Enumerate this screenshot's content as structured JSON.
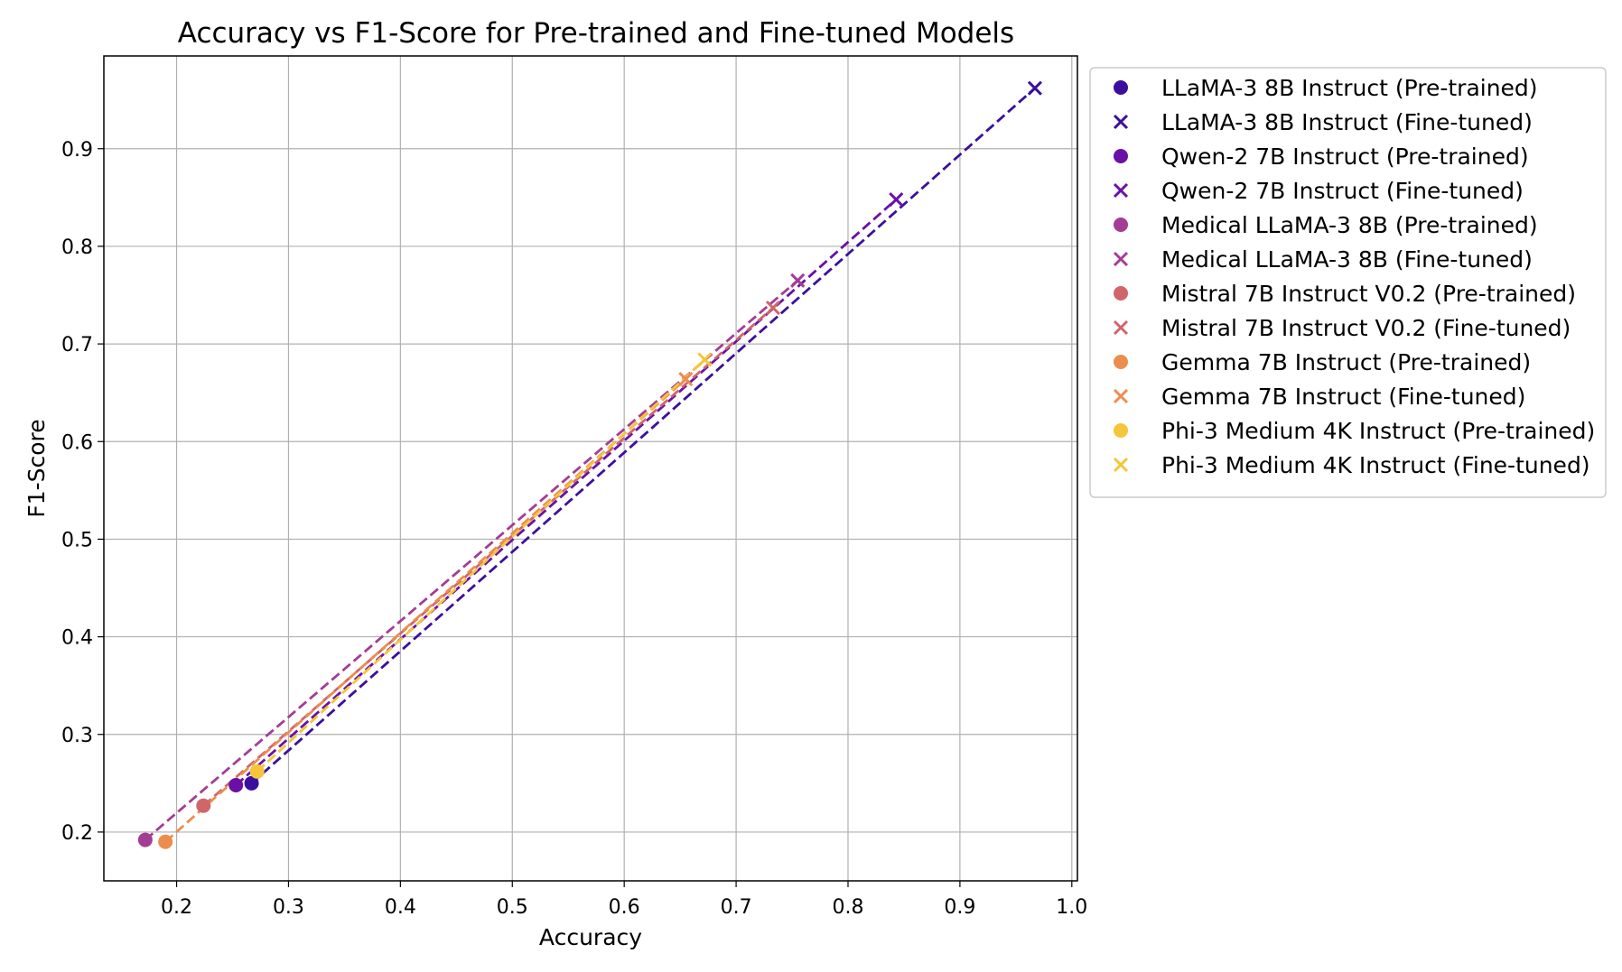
{
  "chart_data": {
    "type": "scatter",
    "title": "Accuracy vs F1-Score for Pre-trained and Fine-tuned Models",
    "xlabel": "Accuracy",
    "ylabel": "F1-Score",
    "xlim": [
      0.135,
      1.005
    ],
    "ylim": [
      0.15,
      0.995
    ],
    "xticks": [
      "0.2",
      "0.3",
      "0.4",
      "0.5",
      "0.6",
      "0.7",
      "0.8",
      "0.9",
      "1.0"
    ],
    "yticks": [
      "0.2",
      "0.3",
      "0.4",
      "0.5",
      "0.6",
      "0.7",
      "0.8",
      "0.9"
    ],
    "grid": true,
    "legend_position": "outside right, top",
    "series": [
      {
        "model": "LLaMA-3 8B Instruct",
        "color": "#3b0f9d",
        "pretrained": {
          "label": "LLaMA-3 8B Instruct (Pre-trained)",
          "x": 0.267,
          "y": 0.25
        },
        "finetuned": {
          "label": "LLaMA-3 8B Instruct (Fine-tuned)",
          "x": 0.967,
          "y": 0.962
        }
      },
      {
        "model": "Qwen-2 7B Instruct",
        "color": "#6a10a8",
        "pretrained": {
          "label": "Qwen-2 7B Instruct (Pre-trained)",
          "x": 0.253,
          "y": 0.248
        },
        "finetuned": {
          "label": "Qwen-2 7B Instruct (Fine-tuned)",
          "x": 0.843,
          "y": 0.848
        }
      },
      {
        "model": "Medical LLaMA-3 8B",
        "color": "#a43c96",
        "pretrained": {
          "label": "Medical LLaMA-3 8B (Pre-trained)",
          "x": 0.172,
          "y": 0.192
        },
        "finetuned": {
          "label": "Medical LLaMA-3 8B (Fine-tuned)",
          "x": 0.755,
          "y": 0.765
        }
      },
      {
        "model": "Mistral 7B Instruct V0.2",
        "color": "#d0666a",
        "pretrained": {
          "label": "Mistral 7B Instruct V0.2 (Pre-trained)",
          "x": 0.224,
          "y": 0.227
        },
        "finetuned": {
          "label": "Mistral 7B Instruct V0.2 (Fine-tuned)",
          "x": 0.733,
          "y": 0.737
        }
      },
      {
        "model": "Gemma 7B Instruct",
        "color": "#ec8d4e",
        "pretrained": {
          "label": "Gemma 7B Instruct (Pre-trained)",
          "x": 0.19,
          "y": 0.19
        },
        "finetuned": {
          "label": "Gemma 7B Instruct (Fine-tuned)",
          "x": 0.655,
          "y": 0.664
        }
      },
      {
        "model": "Phi-3 Medium 4K Instruct",
        "color": "#f5c53a",
        "pretrained": {
          "label": "Phi-3 Medium 4K Instruct (Pre-trained)",
          "x": 0.272,
          "y": 0.262
        },
        "finetuned": {
          "label": "Phi-3 Medium 4K Instruct (Fine-tuned)",
          "x": 0.672,
          "y": 0.684
        }
      }
    ]
  }
}
